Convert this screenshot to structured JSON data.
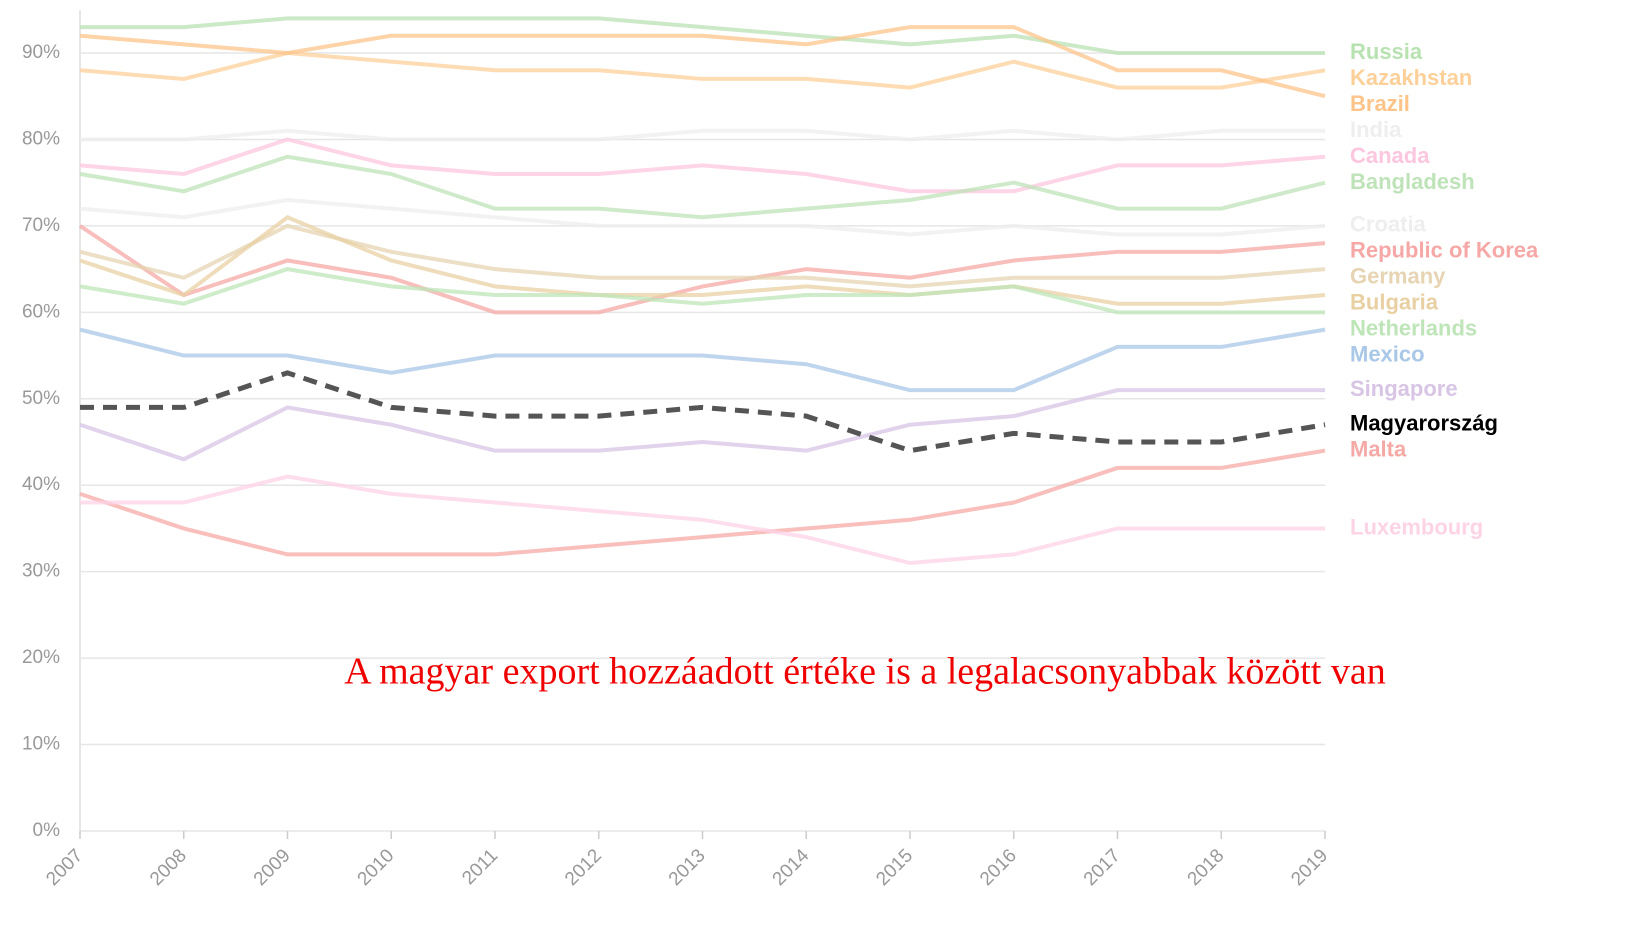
{
  "chart_data": {
    "type": "line",
    "annotation": "A magyar export hozzáadott értéke is a legalacsonyabbak között van",
    "x": [
      2007,
      2008,
      2009,
      2010,
      2011,
      2012,
      2013,
      2014,
      2015,
      2016,
      2017,
      2018,
      2019
    ],
    "xlim": [
      2007,
      2019
    ],
    "xticks": [
      2007,
      2008,
      2009,
      2010,
      2011,
      2012,
      2013,
      2014,
      2015,
      2016,
      2017,
      2018,
      2019
    ],
    "ylim": [
      0,
      90
    ],
    "yticks": [
      {
        "value": 0,
        "label": "0%"
      },
      {
        "value": 10,
        "label": "10%"
      },
      {
        "value": 20,
        "label": "20%"
      },
      {
        "value": 30,
        "label": "30%"
      },
      {
        "value": 40,
        "label": "40%"
      },
      {
        "value": 50,
        "label": "50%"
      },
      {
        "value": 60,
        "label": "60%"
      },
      {
        "value": 70,
        "label": "70%"
      },
      {
        "value": 80,
        "label": "80%"
      },
      {
        "value": 90,
        "label": "90%"
      }
    ],
    "grid": true,
    "series": [
      {
        "name": "Russia",
        "color": "#b9e2b3",
        "values": [
          93,
          93,
          94,
          94,
          94,
          94,
          93,
          92,
          91,
          92,
          90,
          90,
          90
        ]
      },
      {
        "name": "Kazakhstan",
        "color": "#fdd09a",
        "values": [
          88,
          87,
          90,
          89,
          88,
          88,
          87,
          87,
          86,
          89,
          86,
          86,
          88
        ]
      },
      {
        "name": "Brazil",
        "color": "#fcc489",
        "values": [
          92,
          91,
          90,
          92,
          92,
          92,
          92,
          91,
          93,
          93,
          88,
          88,
          85
        ]
      },
      {
        "name": "India",
        "color": "#eeeeee",
        "values": [
          80,
          80,
          81,
          80,
          80,
          80,
          81,
          81,
          80,
          81,
          80,
          81,
          81
        ]
      },
      {
        "name": "Canada",
        "color": "#fdc6df",
        "values": [
          77,
          76,
          80,
          77,
          76,
          76,
          77,
          76,
          74,
          74,
          77,
          77,
          78
        ]
      },
      {
        "name": "Bangladesh",
        "color": "#bfe3b8",
        "values": [
          76,
          74,
          78,
          76,
          72,
          72,
          71,
          72,
          73,
          75,
          72,
          72,
          75
        ]
      },
      {
        "name": "Croatia",
        "color": "#eeeeee",
        "values": [
          72,
          71,
          73,
          72,
          71,
          70,
          70,
          70,
          69,
          70,
          69,
          69,
          70
        ]
      },
      {
        "name": "Republic of Korea",
        "color": "#f6a8a6",
        "values": [
          70,
          62,
          66,
          64,
          60,
          60,
          63,
          65,
          64,
          66,
          67,
          67,
          68
        ]
      },
      {
        "name": "Germany",
        "color": "#e6d4b2",
        "values": [
          67,
          64,
          70,
          67,
          65,
          64,
          64,
          64,
          63,
          64,
          64,
          64,
          65
        ]
      },
      {
        "name": "Bulgaria",
        "color": "#e8d0a3",
        "values": [
          66,
          62,
          71,
          66,
          63,
          62,
          62,
          63,
          62,
          63,
          61,
          61,
          62
        ]
      },
      {
        "name": "Netherlands",
        "color": "#bee5b8",
        "values": [
          63,
          61,
          65,
          63,
          62,
          62,
          61,
          62,
          62,
          63,
          60,
          60,
          60
        ]
      },
      {
        "name": "Mexico",
        "color": "#a9c7e7",
        "values": [
          58,
          55,
          55,
          53,
          55,
          55,
          55,
          54,
          51,
          51,
          56,
          56,
          58
        ]
      },
      {
        "name": "Singapore",
        "color": "#d8c4e5",
        "values": [
          47,
          43,
          49,
          47,
          44,
          44,
          45,
          44,
          47,
          48,
          51,
          51,
          51
        ]
      },
      {
        "name": "Magyarország",
        "color": "#555555",
        "label_color": "#000000",
        "style": "dashed",
        "values": [
          49,
          49,
          53,
          49,
          48,
          48,
          49,
          48,
          44,
          46,
          45,
          45,
          47
        ]
      },
      {
        "name": "Malta",
        "color": "#f5a9a5",
        "values": [
          39,
          35,
          32,
          32,
          32,
          33,
          34,
          35,
          36,
          38,
          42,
          42,
          44
        ]
      },
      {
        "name": "Luxembourg",
        "color": "#fdd3e6",
        "values": [
          38,
          38,
          41,
          39,
          38,
          37,
          36,
          34,
          31,
          32,
          35,
          35,
          35
        ]
      }
    ]
  }
}
